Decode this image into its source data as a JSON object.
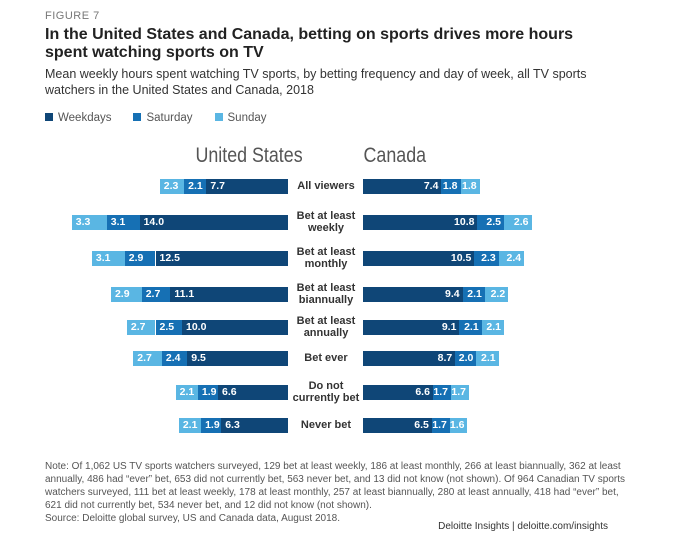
{
  "figure_label": "FIGURE 7",
  "chart_data": {
    "type": "bar",
    "title": "In the United States and Canada, betting on sports drives more hours spent watching sports on TV",
    "subtitle": "Mean weekly hours spent watching TV sports, by betting frequency and day of week, all TV sports watchers in the United States and Canada, 2018",
    "categories": [
      "All viewers",
      "Bet at least weekly",
      "Bet at least monthly",
      "Bet at least biannually",
      "Bet at least annually",
      "Bet ever",
      "Do not currently bet",
      "Never bet"
    ],
    "category_lines": [
      [
        "All viewers"
      ],
      [
        "Bet at least",
        "weekly"
      ],
      [
        "Bet at least",
        "monthly"
      ],
      [
        "Bet at least",
        "biannually"
      ],
      [
        "Bet at least",
        "annually"
      ],
      [
        "Bet ever"
      ],
      [
        "Do not",
        "currently bet"
      ],
      [
        "Never bet"
      ]
    ],
    "legend": [
      "Weekdays",
      "Saturday",
      "Sunday"
    ],
    "colors": [
      "#0f4677",
      "#1670b4",
      "#5ab6e3"
    ],
    "panels": [
      {
        "name": "United States",
        "series": [
          {
            "name": "Weekdays",
            "values": [
              7.7,
              14.0,
              12.5,
              11.1,
              10.0,
              9.5,
              6.6,
              6.3
            ]
          },
          {
            "name": "Saturday",
            "values": [
              2.1,
              3.1,
              2.9,
              2.7,
              2.5,
              2.4,
              1.9,
              1.9
            ]
          },
          {
            "name": "Sunday",
            "values": [
              2.3,
              3.3,
              3.1,
              2.9,
              2.7,
              2.7,
              2.1,
              2.1
            ]
          }
        ]
      },
      {
        "name": "Canada",
        "series": [
          {
            "name": "Weekdays",
            "values": [
              7.4,
              10.8,
              10.5,
              9.4,
              9.1,
              8.7,
              6.6,
              6.5
            ]
          },
          {
            "name": "Saturday",
            "values": [
              1.8,
              2.5,
              2.3,
              2.1,
              2.1,
              2.0,
              1.7,
              1.7
            ]
          },
          {
            "name": "Sunday",
            "values": [
              1.8,
              2.6,
              2.4,
              2.2,
              2.1,
              2.1,
              1.7,
              1.6
            ]
          }
        ]
      }
    ]
  },
  "note": "Note: Of 1,062 US TV sports watchers surveyed, 129 bet at least weekly, 186 at least monthly, 266 at least biannually, 362 at least annually, 486 had “ever” bet, 653 did not currently bet, 563 never bet, and 13 did not know (not shown). Of 964 Canadian TV sports watchers surveyed, 111 bet at least weekly, 178 at least monthly, 257 at least biannually, 280 at least annually, 418 had “ever” bet, 621 did not currently bet, 534 never bet, and 12 did not know (not shown).",
  "source": "Source: Deloitte global survey, US and Canada data, August 2018.",
  "credit": "Deloitte Insights | deloitte.com/insights"
}
